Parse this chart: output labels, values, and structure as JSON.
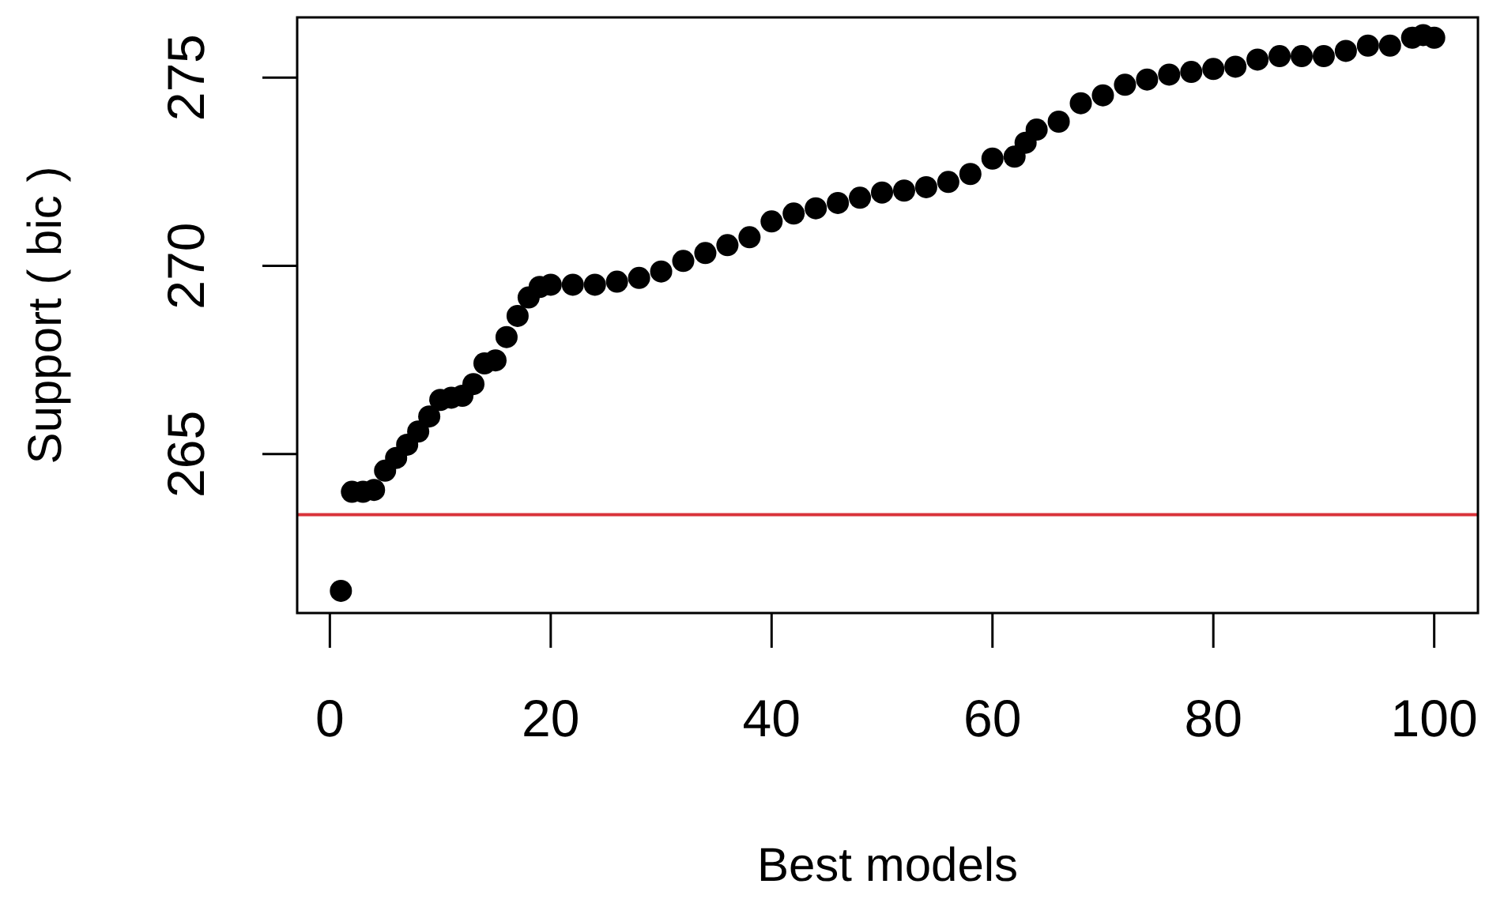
{
  "chart_data": {
    "type": "scatter",
    "xlabel": "Best models",
    "ylabel": "Support ( bic )",
    "xlim": [
      -2.96,
      103.96
    ],
    "ylim": [
      260.78,
      276.6
    ],
    "xticks": [
      0,
      20,
      40,
      60,
      80,
      100
    ],
    "yticks": [
      265,
      270,
      275
    ],
    "grid": false,
    "legend": false,
    "marker": "circle",
    "series": [
      {
        "color": "#000000",
        "x": [
          1,
          2,
          3,
          4,
          5,
          6,
          7,
          8,
          9,
          10,
          11,
          12,
          13,
          14,
          15,
          16,
          17,
          18,
          19,
          20,
          22,
          24,
          26,
          28,
          30,
          32,
          34,
          36,
          38,
          40,
          42,
          44,
          46,
          48,
          50,
          52,
          54,
          56,
          58,
          60,
          62,
          63,
          64,
          66,
          68,
          70,
          72,
          74,
          76,
          78,
          80,
          82,
          84,
          86,
          88,
          90,
          92,
          94,
          96,
          98,
          99,
          100
        ],
        "values": [
          261.37,
          264.0,
          264.0,
          264.05,
          264.56,
          264.9,
          265.25,
          265.6,
          266.0,
          266.44,
          266.5,
          266.55,
          266.86,
          267.41,
          267.49,
          268.11,
          268.67,
          269.16,
          269.44,
          269.5,
          269.5,
          269.5,
          269.58,
          269.68,
          269.85,
          270.13,
          270.34,
          270.55,
          270.76,
          271.18,
          271.39,
          271.53,
          271.67,
          271.81,
          271.95,
          272.0,
          272.09,
          272.23,
          272.44,
          272.85,
          272.9,
          273.27,
          273.62,
          273.83,
          274.32,
          274.53,
          274.81,
          274.95,
          275.08,
          275.15,
          275.23,
          275.29,
          275.48,
          275.57,
          275.57,
          275.57,
          275.71,
          275.85,
          275.85,
          276.06,
          276.13,
          276.06
        ]
      }
    ],
    "ref_lines": [
      {
        "axis": "y",
        "value": 263.39,
        "color": "#d9333a"
      }
    ]
  }
}
